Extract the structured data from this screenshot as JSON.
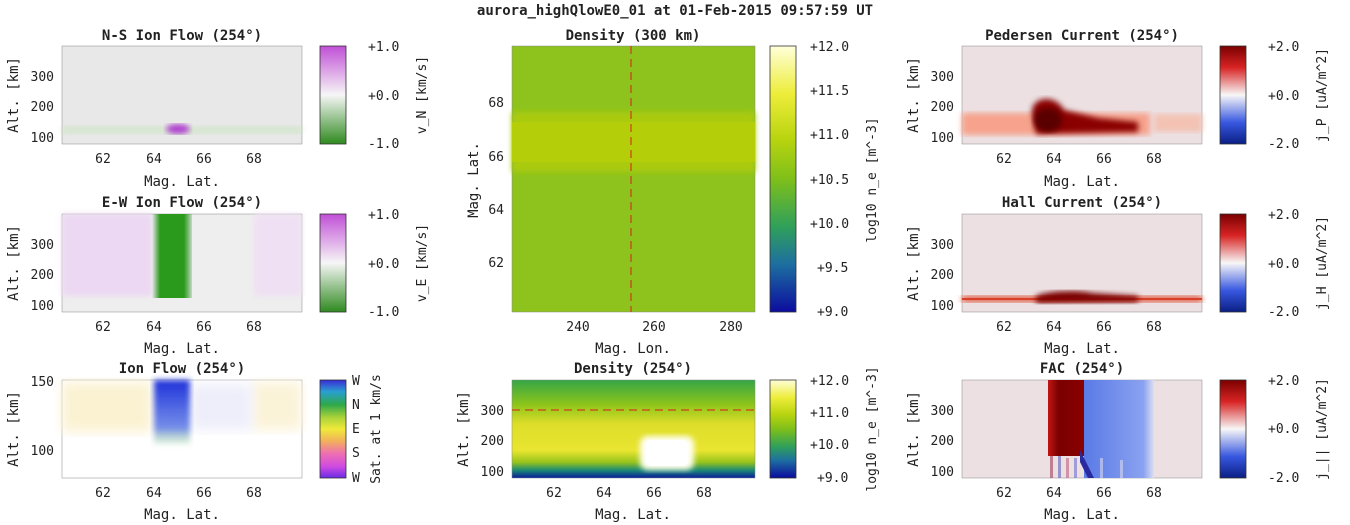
{
  "figure_title": "aurora_highQlowE0_01 at 01-Feb-2015 09:57:59 UT",
  "panels": [
    {
      "id": "ns-ion-flow",
      "title": "N-S Ion Flow (254°)",
      "xlabel": "Mag. Lat.",
      "ylabel": "Alt. [km]",
      "xticks": [
        "62",
        "64",
        "66",
        "68"
      ],
      "yticks": [
        "100",
        "200",
        "300"
      ],
      "cb_ticks": [
        "+1.0",
        "+0.0",
        "-1.0"
      ],
      "cb_label": "v_N [km/s]"
    },
    {
      "id": "ew-ion-flow",
      "title": "E-W Ion Flow (254°)",
      "xlabel": "Mag. Lat.",
      "ylabel": "Alt. [km]",
      "xticks": [
        "62",
        "64",
        "66",
        "68"
      ],
      "yticks": [
        "100",
        "200",
        "300"
      ],
      "cb_ticks": [
        "+1.0",
        "+0.0",
        "-1.0"
      ],
      "cb_label": "v_E [km/s]"
    },
    {
      "id": "ion-flow",
      "title": "Ion Flow (254°)",
      "xlabel": "Mag. Lat.",
      "ylabel": "Alt. [km]",
      "xticks": [
        "62",
        "64",
        "66",
        "68"
      ],
      "yticks": [
        "100",
        "150"
      ],
      "cb_ticks": [
        "W",
        "N",
        "E",
        "S",
        "W"
      ],
      "cb_label": "Sat. at 1 km/s"
    },
    {
      "id": "density-300km",
      "title": "Density (300 km)",
      "xlabel": "Mag. Lon.",
      "ylabel": "Mag. Lat.",
      "xticks": [
        "240",
        "260",
        "280"
      ],
      "yticks": [
        "62",
        "64",
        "66",
        "68"
      ],
      "cb_ticks": [
        "+12.0",
        "+11.5",
        "+11.0",
        "+10.5",
        "+10.0",
        "+9.5",
        "+9.0"
      ],
      "cb_label": "log10 n_e [m^-3]"
    },
    {
      "id": "density-254",
      "title": "Density (254°)",
      "xlabel": "Mag. Lat.",
      "ylabel": "Alt. [km]",
      "xticks": [
        "62",
        "64",
        "66",
        "68"
      ],
      "yticks": [
        "100",
        "200",
        "300"
      ],
      "cb_ticks": [
        "+12.0",
        "+11.0",
        "+10.0",
        "+9.0"
      ],
      "cb_label": "log10 n_e [m^-3]"
    },
    {
      "id": "pedersen-current",
      "title": "Pedersen Current (254°)",
      "xlabel": "Mag. Lat.",
      "ylabel": "Alt. [km]",
      "xticks": [
        "62",
        "64",
        "66",
        "68"
      ],
      "yticks": [
        "100",
        "200",
        "300"
      ],
      "cb_ticks": [
        "+2.0",
        "+0.0",
        "-2.0"
      ],
      "cb_label": "j_P [uA/m^2]"
    },
    {
      "id": "hall-current",
      "title": "Hall Current (254°)",
      "xlabel": "Mag. Lat.",
      "ylabel": "Alt. [km]",
      "xticks": [
        "62",
        "64",
        "66",
        "68"
      ],
      "yticks": [
        "100",
        "200",
        "300"
      ],
      "cb_ticks": [
        "+2.0",
        "+0.0",
        "-2.0"
      ],
      "cb_label": "j_H [uA/m^2]"
    },
    {
      "id": "fac",
      "title": "FAC (254°)",
      "xlabel": "Mag. Lat.",
      "ylabel": "Alt. [km]",
      "xticks": [
        "62",
        "64",
        "66",
        "68"
      ],
      "yticks": [
        "100",
        "200",
        "300"
      ],
      "cb_ticks": [
        "+2.0",
        "+0.0",
        "-2.0"
      ],
      "cb_label": "j_|| [uA/m^2]"
    }
  ],
  "chart_data": [
    {
      "type": "heatmap",
      "title": "N-S Ion Flow (254°)",
      "xlabel": "Mag. Lat.",
      "ylabel": "Alt. [km]",
      "xlim": [
        60.5,
        70
      ],
      "ylim": [
        80,
        400
      ],
      "colorbar": {
        "label": "v_N [km/s]",
        "range": [
          -1.0,
          1.0
        ]
      },
      "features": [
        {
          "desc": "weak poleward flow",
          "lat_range": [
            64.7,
            65.3
          ],
          "alt_range": [
            110,
            130
          ],
          "value": 0.6
        }
      ]
    },
    {
      "type": "heatmap",
      "title": "E-W Ion Flow (254°)",
      "xlabel": "Mag. Lat.",
      "ylabel": "Alt. [km]",
      "xlim": [
        60.5,
        70
      ],
      "ylim": [
        80,
        400
      ],
      "colorbar": {
        "label": "v_E [km/s]",
        "range": [
          -1.0,
          1.0
        ]
      },
      "features": [
        {
          "lat_range": [
            64.0,
            65.0
          ],
          "alt_range": [
            120,
            400
          ],
          "value": -1.0
        },
        {
          "lat_range": [
            60.5,
            63.8
          ],
          "alt_range": [
            120,
            400
          ],
          "value": 0.15
        },
        {
          "lat_range": [
            68.0,
            70.0
          ],
          "alt_range": [
            120,
            400
          ],
          "value": 0.12
        }
      ]
    },
    {
      "type": "heatmap",
      "title": "Ion Flow (254°)",
      "xlabel": "Mag. Lat.",
      "ylabel": "Alt. [km]",
      "xlim": [
        60.5,
        70
      ],
      "ylim": [
        80,
        150
      ],
      "colorbar": {
        "label": "Sat. at 1 km/s",
        "ticks": [
          "W",
          "N",
          "E",
          "S",
          "W"
        ]
      }
    },
    {
      "type": "heatmap",
      "title": "Density (300 km)",
      "xlabel": "Mag. Lon.",
      "ylabel": "Mag. Lat.",
      "xlim": [
        224,
        286
      ],
      "ylim": [
        60.3,
        70
      ],
      "colorbar": {
        "label": "log10 n_e [m^-3]",
        "range": [
          9.0,
          12.0
        ]
      },
      "cut_lon": 254,
      "features": [
        {
          "lat_range": [
            65.3,
            67.5
          ],
          "value": 11.2
        },
        {
          "lat_range": [
            60.3,
            65.3
          ],
          "value": 11.0
        },
        {
          "lat_range": [
            67.5,
            70
          ],
          "value": 11.0
        }
      ]
    },
    {
      "type": "heatmap",
      "title": "Density (254°)",
      "xlabel": "Mag. Lat.",
      "ylabel": "Alt. [km]",
      "xlim": [
        60.5,
        70
      ],
      "ylim": [
        80,
        400
      ],
      "colorbar": {
        "label": "log10 n_e [m^-3]",
        "range": [
          9.0,
          12.0
        ]
      },
      "cut_alt": 300,
      "features": [
        {
          "lat_range": [
            65.5,
            67.7
          ],
          "alt_range": [
            120,
            200
          ],
          "value": 12.0
        }
      ]
    },
    {
      "type": "heatmap",
      "title": "Pedersen Current (254°)",
      "xlabel": "Mag. Lat.",
      "ylabel": "Alt. [km]",
      "xlim": [
        60.5,
        70
      ],
      "ylim": [
        80,
        400
      ],
      "colorbar": {
        "label": "j_P [uA/m^2]",
        "range": [
          -2.0,
          2.0
        ]
      },
      "features": [
        {
          "lat_range": [
            64.7,
            67.7
          ],
          "alt_range": [
            110,
            180
          ],
          "value": 2.0
        }
      ]
    },
    {
      "type": "heatmap",
      "title": "Hall Current (254°)",
      "xlabel": "Mag. Lat.",
      "ylabel": "Alt. [km]",
      "xlim": [
        60.5,
        70
      ],
      "ylim": [
        80,
        400
      ],
      "colorbar": {
        "label": "j_H [uA/m^2]",
        "range": [
          -2.0,
          2.0
        ]
      },
      "features": [
        {
          "lat_range": [
            64.7,
            67.7
          ],
          "alt_range": [
            110,
            135
          ],
          "value": 2.0
        }
      ]
    },
    {
      "type": "heatmap",
      "title": "FAC (254°)",
      "xlabel": "Mag. Lat.",
      "ylabel": "Alt. [km]",
      "xlim": [
        60.5,
        70
      ],
      "ylim": [
        80,
        400
      ],
      "colorbar": {
        "label": "j_|| [uA/m^2]",
        "range": [
          -2.0,
          2.0
        ]
      },
      "features": [
        {
          "lat_range": [
            63.8,
            65.0
          ],
          "alt_range": [
            110,
            400
          ],
          "value": 2.0
        },
        {
          "lat_range": [
            65.0,
            67.6
          ],
          "alt_range": [
            110,
            400
          ],
          "value": -1.0
        }
      ]
    }
  ]
}
